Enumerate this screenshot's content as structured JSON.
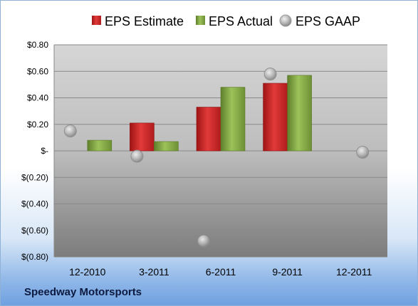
{
  "company_label": "Speedway Motorsports",
  "colors": {
    "estimate": "#d42a2a",
    "actual": "#8ab048",
    "gaap": "#b8b8b8"
  },
  "chart_data": {
    "type": "bar",
    "title": "",
    "xlabel": "",
    "ylabel": "",
    "categories": [
      "12-2010",
      "3-2011",
      "6-2011",
      "9-2011",
      "12-2011"
    ],
    "ylim": [
      -0.8,
      0.8
    ],
    "yticks": [
      {
        "value": 0.8,
        "label": "$0.80"
      },
      {
        "value": 0.6,
        "label": "$0.60"
      },
      {
        "value": 0.4,
        "label": "$0.40"
      },
      {
        "value": 0.2,
        "label": "$0.20"
      },
      {
        "value": 0.0,
        "label": "$-"
      },
      {
        "value": -0.2,
        "label": "$(0.20)"
      },
      {
        "value": -0.4,
        "label": "$(0.40)"
      },
      {
        "value": -0.6,
        "label": "$(0.60)"
      },
      {
        "value": -0.8,
        "label": "$(0.80)"
      }
    ],
    "grid": true,
    "legend_position": "top",
    "series": [
      {
        "name": "EPS Estimate",
        "kind": "bar",
        "values": [
          null,
          0.21,
          0.33,
          0.51,
          null
        ]
      },
      {
        "name": "EPS Actual",
        "kind": "bar",
        "values": [
          0.08,
          0.07,
          0.48,
          0.57,
          null
        ]
      },
      {
        "name": "EPS GAAP",
        "kind": "marker",
        "values": [
          0.15,
          -0.04,
          -0.68,
          0.58,
          -0.01
        ]
      }
    ]
  }
}
